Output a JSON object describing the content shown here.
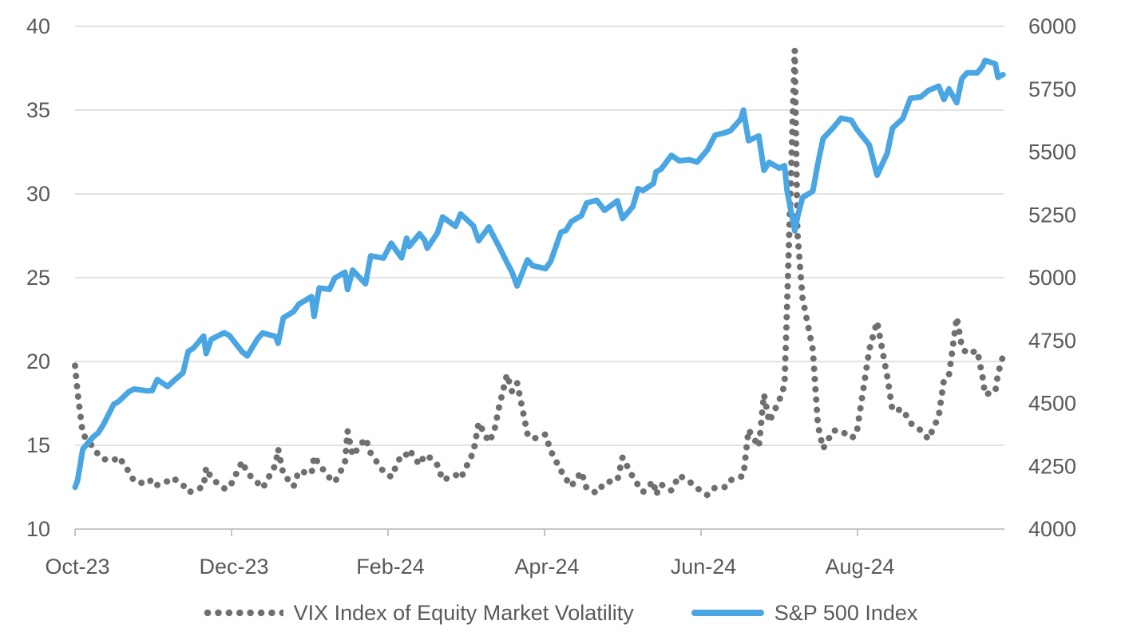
{
  "chart_data": {
    "type": "line",
    "title": "",
    "legend_position": "bottom",
    "grid": true,
    "colors": {
      "vix": "#6F6F6F",
      "spx": "#4AA5E3",
      "gridline": "#D9D9D9",
      "axis_line": "#BFBFBF",
      "label_text": "#595959",
      "background": "#FFFFFF"
    },
    "axes": {
      "y_left": {
        "min": 10,
        "max": 40,
        "ticks": [
          40,
          35,
          30,
          25,
          20,
          15,
          10
        ]
      },
      "y_right": {
        "min": 4000,
        "max": 6000,
        "ticks": [
          6000,
          5750,
          5500,
          5250,
          5000,
          4750,
          4500,
          4250,
          4000
        ]
      },
      "x": {
        "start_date": "2023-10-30",
        "tick_labels": [
          "Oct-23",
          "Dec-23",
          "Feb-24",
          "Apr-24",
          "Jun-24",
          "Aug-24"
        ],
        "months_per_tick": 2
      }
    },
    "x_dates": [
      "2023-10-30",
      "2023-10-31",
      "2023-11-02",
      "2023-11-06",
      "2023-11-08",
      "2023-11-10",
      "2023-11-14",
      "2023-11-16",
      "2023-11-20",
      "2023-11-22",
      "2023-11-27",
      "2023-11-29",
      "2023-12-01",
      "2023-12-05",
      "2023-12-07",
      "2023-12-11",
      "2023-12-13",
      "2023-12-15",
      "2023-12-19",
      "2023-12-20",
      "2023-12-22",
      "2023-12-27",
      "2023-12-29",
      "2024-01-03",
      "2024-01-05",
      "2024-01-09",
      "2024-01-11",
      "2024-01-16",
      "2024-01-17",
      "2024-01-19",
      "2024-01-23",
      "2024-01-25",
      "2024-01-30",
      "2024-01-31",
      "2024-02-02",
      "2024-02-06",
      "2024-02-08",
      "2024-02-12",
      "2024-02-13",
      "2024-02-15",
      "2024-02-20",
      "2024-02-22",
      "2024-02-27",
      "2024-03-01",
      "2024-03-05",
      "2024-03-07",
      "2024-03-08",
      "2024-03-12",
      "2024-03-14",
      "2024-03-15",
      "2024-03-19",
      "2024-03-21",
      "2024-03-26",
      "2024-03-28",
      "2024-04-02",
      "2024-04-04",
      "2024-04-08",
      "2024-04-10",
      "2024-04-12",
      "2024-04-15",
      "2024-04-17",
      "2024-04-19",
      "2024-04-23",
      "2024-04-25",
      "2024-04-30",
      "2024-05-02",
      "2024-05-06",
      "2024-05-08",
      "2024-05-10",
      "2024-05-14",
      "2024-05-16",
      "2024-05-20",
      "2024-05-23",
      "2024-05-28",
      "2024-05-30",
      "2024-06-03",
      "2024-06-05",
      "2024-06-07",
      "2024-06-11",
      "2024-06-12",
      "2024-06-14",
      "2024-06-18",
      "2024-06-21",
      "2024-06-25",
      "2024-06-28",
      "2024-07-02",
      "2024-07-05",
      "2024-07-09",
      "2024-07-11",
      "2024-07-15",
      "2024-07-16",
      "2024-07-18",
      "2024-07-22",
      "2024-07-24",
      "2024-07-26",
      "2024-07-30",
      "2024-08-01",
      "2024-08-02",
      "2024-08-05",
      "2024-08-06",
      "2024-08-08",
      "2024-08-12",
      "2024-08-14",
      "2024-08-16",
      "2024-08-20",
      "2024-08-23",
      "2024-08-27",
      "2024-08-29",
      "2024-09-03",
      "2024-09-06",
      "2024-09-10",
      "2024-09-12",
      "2024-09-16",
      "2024-09-19",
      "2024-09-23",
      "2024-09-26",
      "2024-09-30",
      "2024-10-02",
      "2024-10-04",
      "2024-10-07",
      "2024-10-09",
      "2024-10-11",
      "2024-10-15",
      "2024-10-17",
      "2024-10-18",
      "2024-10-22",
      "2024-10-23",
      "2024-10-25"
    ],
    "series": [
      {
        "name": "VIX Index of Equity Market Volatility",
        "axis": "left",
        "style": "dotted",
        "color": "#6F6F6F",
        "values": [
          19.75,
          18.14,
          15.66,
          14.89,
          14.45,
          14.17,
          14.1,
          14.32,
          13.41,
          12.85,
          12.69,
          12.98,
          12.63,
          12.85,
          13.06,
          12.63,
          12.19,
          12.28,
          12.53,
          13.67,
          13.03,
          12.43,
          12.45,
          14.04,
          13.35,
          12.76,
          12.44,
          13.84,
          14.79,
          13.3,
          12.55,
          13.45,
          13.31,
          14.35,
          13.85,
          13.06,
          12.79,
          13.93,
          15.85,
          14.38,
          15.42,
          14.54,
          13.43,
          13.11,
          14.46,
          14.44,
          14.74,
          13.84,
          14.4,
          14.41,
          13.82,
          12.92,
          13.24,
          13.01,
          14.61,
          16.35,
          15.19,
          15.8,
          17.31,
          19.23,
          18.21,
          18.71,
          15.69,
          15.37,
          15.65,
          14.68,
          13.49,
          13.0,
          12.55,
          13.42,
          12.42,
          12.15,
          12.77,
          12.92,
          14.28,
          13.11,
          12.63,
          12.22,
          12.85,
          12.04,
          12.66,
          12.3,
          13.2,
          12.84,
          12.44,
          12.03,
          12.48,
          12.51,
          12.92,
          13.12,
          13.19,
          15.93,
          14.91,
          18.04,
          16.39,
          17.69,
          18.59,
          23.39,
          38.57,
          27.71,
          23.79,
          20.71,
          16.19,
          14.8,
          15.88,
          15.86,
          15.43,
          15.65,
          20.72,
          22.38,
          19.08,
          17.07,
          17.14,
          16.33,
          15.89,
          15.37,
          16.73,
          18.9,
          19.21,
          22.64,
          20.86,
          20.46,
          20.64,
          19.11,
          18.03,
          18.2,
          19.24,
          20.33
        ]
      },
      {
        "name": "S&P 500 Index",
        "axis": "right",
        "style": "solid",
        "color": "#4AA5E3",
        "values": [
          4166,
          4194,
          4318,
          4366,
          4383,
          4415,
          4496,
          4508,
          4547,
          4557,
          4550,
          4551,
          4595,
          4567,
          4586,
          4622,
          4707,
          4719,
          4768,
          4698,
          4755,
          4781,
          4770,
          4705,
          4689,
          4757,
          4780,
          4766,
          4739,
          4840,
          4865,
          4894,
          4925,
          4846,
          4959,
          4954,
          4998,
          5022,
          4953,
          5030,
          4976,
          5087,
          5078,
          5137,
          5079,
          5157,
          5124,
          5175,
          5150,
          5117,
          5178,
          5242,
          5204,
          5254,
          5206,
          5147,
          5202,
          5161,
          5123,
          5061,
          5022,
          4967,
          5071,
          5048,
          5036,
          5064,
          5181,
          5188,
          5223,
          5247,
          5297,
          5308,
          5268,
          5306,
          5235,
          5283,
          5354,
          5347,
          5375,
          5421,
          5432,
          5487,
          5465,
          5469,
          5460,
          5509,
          5567,
          5577,
          5585,
          5631,
          5667,
          5545,
          5564,
          5427,
          5459,
          5436,
          5446,
          5346,
          5186,
          5240,
          5319,
          5344,
          5455,
          5554,
          5597,
          5635,
          5626,
          5592,
          5528,
          5408,
          5496,
          5595,
          5633,
          5714,
          5719,
          5745,
          5762,
          5709,
          5751,
          5696,
          5792,
          5815,
          5815,
          5841,
          5864,
          5851,
          5797,
          5808
        ]
      }
    ]
  }
}
